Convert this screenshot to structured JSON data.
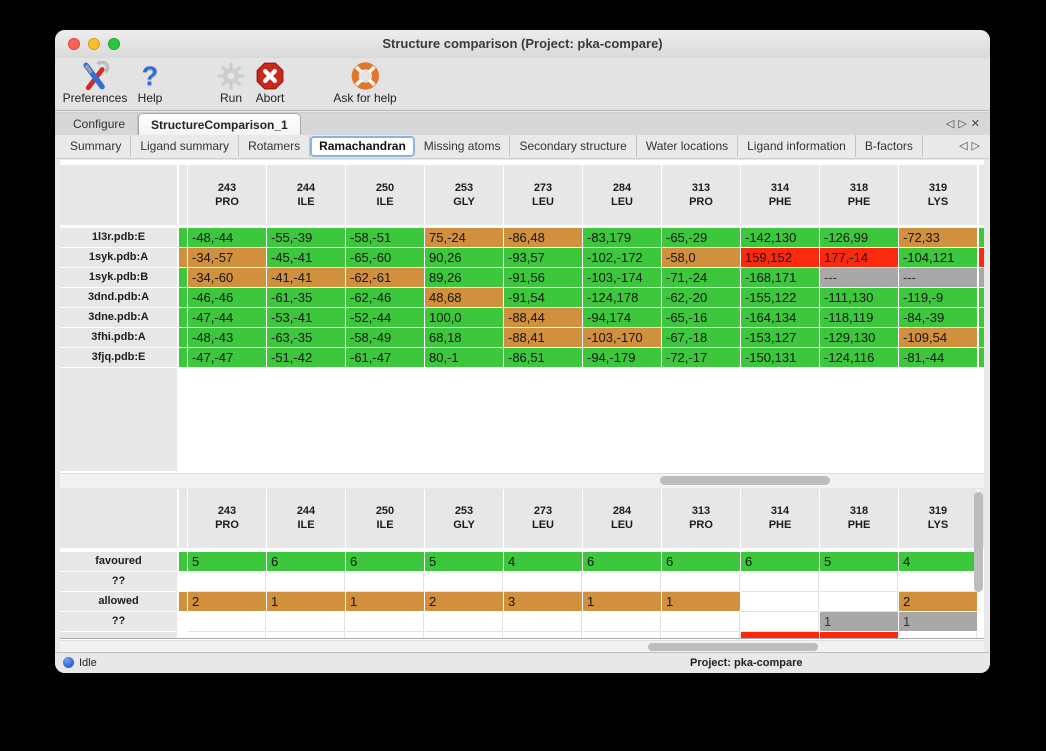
{
  "window": {
    "title": "Structure comparison (Project: pka-compare)"
  },
  "traffic_lights": [
    "close",
    "minimize",
    "zoom"
  ],
  "toolbar": [
    {
      "name": "preferences",
      "label": "Preferences"
    },
    {
      "name": "help",
      "label": "Help"
    },
    {
      "name": "run",
      "label": "Run"
    },
    {
      "name": "abort",
      "label": "Abort"
    },
    {
      "name": "ask-for-help",
      "label": "Ask for help"
    }
  ],
  "main_tabs": {
    "items": [
      "Configure",
      "StructureComparison_1"
    ],
    "selected": "StructureComparison_1"
  },
  "sub_tabs": {
    "items": [
      "Summary",
      "Ligand summary",
      "Rotamers",
      "Ramachandran",
      "Missing atoms",
      "Secondary structure",
      "Water locations",
      "Ligand information",
      "B-factors"
    ],
    "selected": "Ramachandran"
  },
  "legend_colors": {
    "favoured": "#3cc73c",
    "allowed": "#d1903e",
    "outlier": "#fb2a0e",
    "missing": "#a8a8a8"
  },
  "columns": [
    {
      "num": "243",
      "res": "PRO"
    },
    {
      "num": "244",
      "res": "ILE"
    },
    {
      "num": "250",
      "res": "ILE"
    },
    {
      "num": "253",
      "res": "GLY"
    },
    {
      "num": "273",
      "res": "LEU"
    },
    {
      "num": "284",
      "res": "LEU"
    },
    {
      "num": "313",
      "res": "PRO"
    },
    {
      "num": "314",
      "res": "PHE"
    },
    {
      "num": "318",
      "res": "PHE"
    },
    {
      "num": "319",
      "res": "LYS"
    }
  ],
  "structures_table": {
    "rows": [
      {
        "label": "1l3r.pdb:E",
        "strip": "favoured",
        "edge": "favoured",
        "cells": [
          [
            "-48,-44",
            "favoured"
          ],
          [
            "-55,-39",
            "favoured"
          ],
          [
            "-58,-51",
            "favoured"
          ],
          [
            "75,-24",
            "allowed"
          ],
          [
            "-86,48",
            "allowed"
          ],
          [
            "-83,179",
            "favoured"
          ],
          [
            "-65,-29",
            "favoured"
          ],
          [
            "-142,130",
            "favoured"
          ],
          [
            "-126,99",
            "favoured"
          ],
          [
            "-72,33",
            "allowed"
          ]
        ]
      },
      {
        "label": "1syk.pdb:A",
        "strip": "allowed",
        "edge": "outlier",
        "cells": [
          [
            "-34,-57",
            "allowed"
          ],
          [
            "-45,-41",
            "favoured"
          ],
          [
            "-65,-60",
            "favoured"
          ],
          [
            "90,26",
            "favoured"
          ],
          [
            "-93,57",
            "favoured"
          ],
          [
            "-102,-172",
            "favoured"
          ],
          [
            "-58,0",
            "allowed"
          ],
          [
            "159,152",
            "outlier"
          ],
          [
            "177,-14",
            "outlier"
          ],
          [
            "-104,121",
            "favoured"
          ]
        ]
      },
      {
        "label": "1syk.pdb:B",
        "strip": "favoured",
        "edge": "missing",
        "cells": [
          [
            "-34,-60",
            "allowed"
          ],
          [
            "-41,-41",
            "allowed"
          ],
          [
            "-62,-61",
            "allowed"
          ],
          [
            "89,26",
            "favoured"
          ],
          [
            "-91,56",
            "favoured"
          ],
          [
            "-103,-174",
            "favoured"
          ],
          [
            "-71,-24",
            "favoured"
          ],
          [
            "-168,171",
            "favoured"
          ],
          [
            "---",
            "missing"
          ],
          [
            "---",
            "missing"
          ]
        ]
      },
      {
        "label": "3dnd.pdb:A",
        "strip": "favoured",
        "edge": "favoured",
        "cells": [
          [
            "-46,-46",
            "favoured"
          ],
          [
            "-61,-35",
            "favoured"
          ],
          [
            "-62,-46",
            "favoured"
          ],
          [
            "48,68",
            "allowed"
          ],
          [
            "-91,54",
            "favoured"
          ],
          [
            "-124,178",
            "favoured"
          ],
          [
            "-62,-20",
            "favoured"
          ],
          [
            "-155,122",
            "favoured"
          ],
          [
            "-111,130",
            "favoured"
          ],
          [
            "-119,-9",
            "favoured"
          ]
        ]
      },
      {
        "label": "3dne.pdb:A",
        "strip": "favoured",
        "edge": "favoured",
        "cells": [
          [
            "-47,-44",
            "favoured"
          ],
          [
            "-53,-41",
            "favoured"
          ],
          [
            "-52,-44",
            "favoured"
          ],
          [
            "100,0",
            "favoured"
          ],
          [
            "-88,44",
            "allowed"
          ],
          [
            "-94,174",
            "favoured"
          ],
          [
            "-65,-16",
            "favoured"
          ],
          [
            "-164,134",
            "favoured"
          ],
          [
            "-118,119",
            "favoured"
          ],
          [
            "-84,-39",
            "favoured"
          ]
        ]
      },
      {
        "label": "3fhi.pdb:A",
        "strip": "favoured",
        "edge": "favoured",
        "cells": [
          [
            "-48,-43",
            "favoured"
          ],
          [
            "-63,-35",
            "favoured"
          ],
          [
            "-58,-49",
            "favoured"
          ],
          [
            "68,18",
            "favoured"
          ],
          [
            "-88,41",
            "allowed"
          ],
          [
            "-103,-170",
            "allowed"
          ],
          [
            "-67,-18",
            "favoured"
          ],
          [
            "-153,127",
            "favoured"
          ],
          [
            "-129,130",
            "favoured"
          ],
          [
            "-109,54",
            "allowed"
          ]
        ]
      },
      {
        "label": "3fjq.pdb:E",
        "strip": "favoured",
        "edge": "favoured",
        "cells": [
          [
            "-47,-47",
            "favoured"
          ],
          [
            "-51,-42",
            "favoured"
          ],
          [
            "-61,-47",
            "favoured"
          ],
          [
            "80,-1",
            "favoured"
          ],
          [
            "-86,51",
            "favoured"
          ],
          [
            "-94,-179",
            "favoured"
          ],
          [
            "-72,-17",
            "favoured"
          ],
          [
            "-150,131",
            "favoured"
          ],
          [
            "-124,116",
            "favoured"
          ],
          [
            "-81,-44",
            "favoured"
          ]
        ]
      }
    ]
  },
  "counts_table": {
    "rows": [
      {
        "label": "favoured",
        "strip": "favoured",
        "cells": [
          [
            "5",
            "favoured"
          ],
          [
            "6",
            "favoured"
          ],
          [
            "6",
            "favoured"
          ],
          [
            "5",
            "favoured"
          ],
          [
            "4",
            "favoured"
          ],
          [
            "6",
            "favoured"
          ],
          [
            "6",
            "favoured"
          ],
          [
            "6",
            "favoured"
          ],
          [
            "5",
            "favoured"
          ],
          [
            "4",
            "favoured"
          ]
        ]
      },
      {
        "label": "??",
        "strip": null,
        "cells": [
          null,
          null,
          null,
          null,
          null,
          null,
          null,
          null,
          null,
          null
        ]
      },
      {
        "label": "allowed",
        "strip": "allowed",
        "cells": [
          [
            "2",
            "allowed"
          ],
          [
            "1",
            "allowed"
          ],
          [
            "1",
            "allowed"
          ],
          [
            "2",
            "allowed"
          ],
          [
            "3",
            "allowed"
          ],
          [
            "1",
            "allowed"
          ],
          [
            "1",
            "allowed"
          ],
          null,
          null,
          [
            "2",
            "allowed"
          ]
        ]
      },
      {
        "label": "??",
        "strip": null,
        "cells": [
          null,
          null,
          null,
          null,
          null,
          null,
          null,
          null,
          [
            "1",
            "missing"
          ],
          [
            "1",
            "missing"
          ]
        ]
      },
      {
        "label": "",
        "strip": null,
        "partial": true,
        "cells": [
          null,
          null,
          null,
          null,
          null,
          null,
          null,
          [
            "",
            "outlier"
          ],
          [
            "",
            "outlier"
          ],
          null
        ]
      }
    ]
  },
  "status_bar": {
    "state": "Idle",
    "project": "Project: pka-compare"
  }
}
